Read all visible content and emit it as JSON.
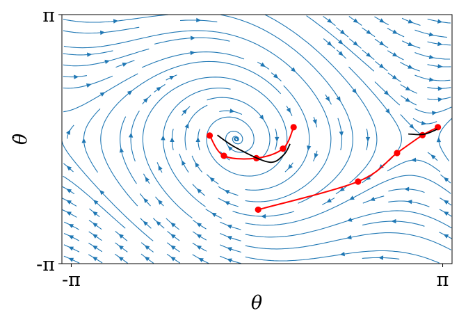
{
  "chart_data": {
    "type": "streamplot",
    "title": "",
    "xlabel": "θ",
    "ylabel": "θ̇",
    "xlim": [
      -3.3,
      3.3
    ],
    "ylim": [
      -3.1416,
      3.1416
    ],
    "x_ticks": [
      {
        "value": -3.1416,
        "label": "-π"
      },
      {
        "value": 3.1416,
        "label": "π"
      }
    ],
    "y_ticks": [
      {
        "value": -3.1416,
        "label": "-π"
      },
      {
        "value": 3.1416,
        "label": "π"
      }
    ],
    "grid": false,
    "legend": "none",
    "colors": {
      "streamlines": "#1f77b4",
      "trajectory": "#ff0000",
      "reference": "#000000"
    },
    "series": [
      {
        "kind": "trajectory",
        "color": "#ff0000",
        "markers": true,
        "x": [
          -0.8,
          -0.56,
          -0.01,
          0.44,
          0.62
        ],
        "y": [
          0.09,
          -0.42,
          -0.48,
          -0.24,
          0.3
        ]
      },
      {
        "kind": "trajectory",
        "color": "#ff0000",
        "markers": true,
        "x": [
          0.02,
          1.71,
          2.37,
          2.8,
          3.06
        ],
        "y": [
          -1.78,
          -1.07,
          -0.35,
          0.1,
          0.3
        ]
      },
      {
        "kind": "reference",
        "color": "#000000",
        "markers": false,
        "x": [
          -0.67,
          -0.35,
          0.2,
          0.45,
          0.56
        ],
        "y": [
          0.1,
          -0.22,
          -0.58,
          -0.4,
          -0.12
        ]
      },
      {
        "kind": "reference",
        "color": "#000000",
        "markers": false,
        "x": [
          2.56,
          2.82,
          3.05
        ],
        "y": [
          0.13,
          0.12,
          0.25
        ]
      }
    ]
  }
}
